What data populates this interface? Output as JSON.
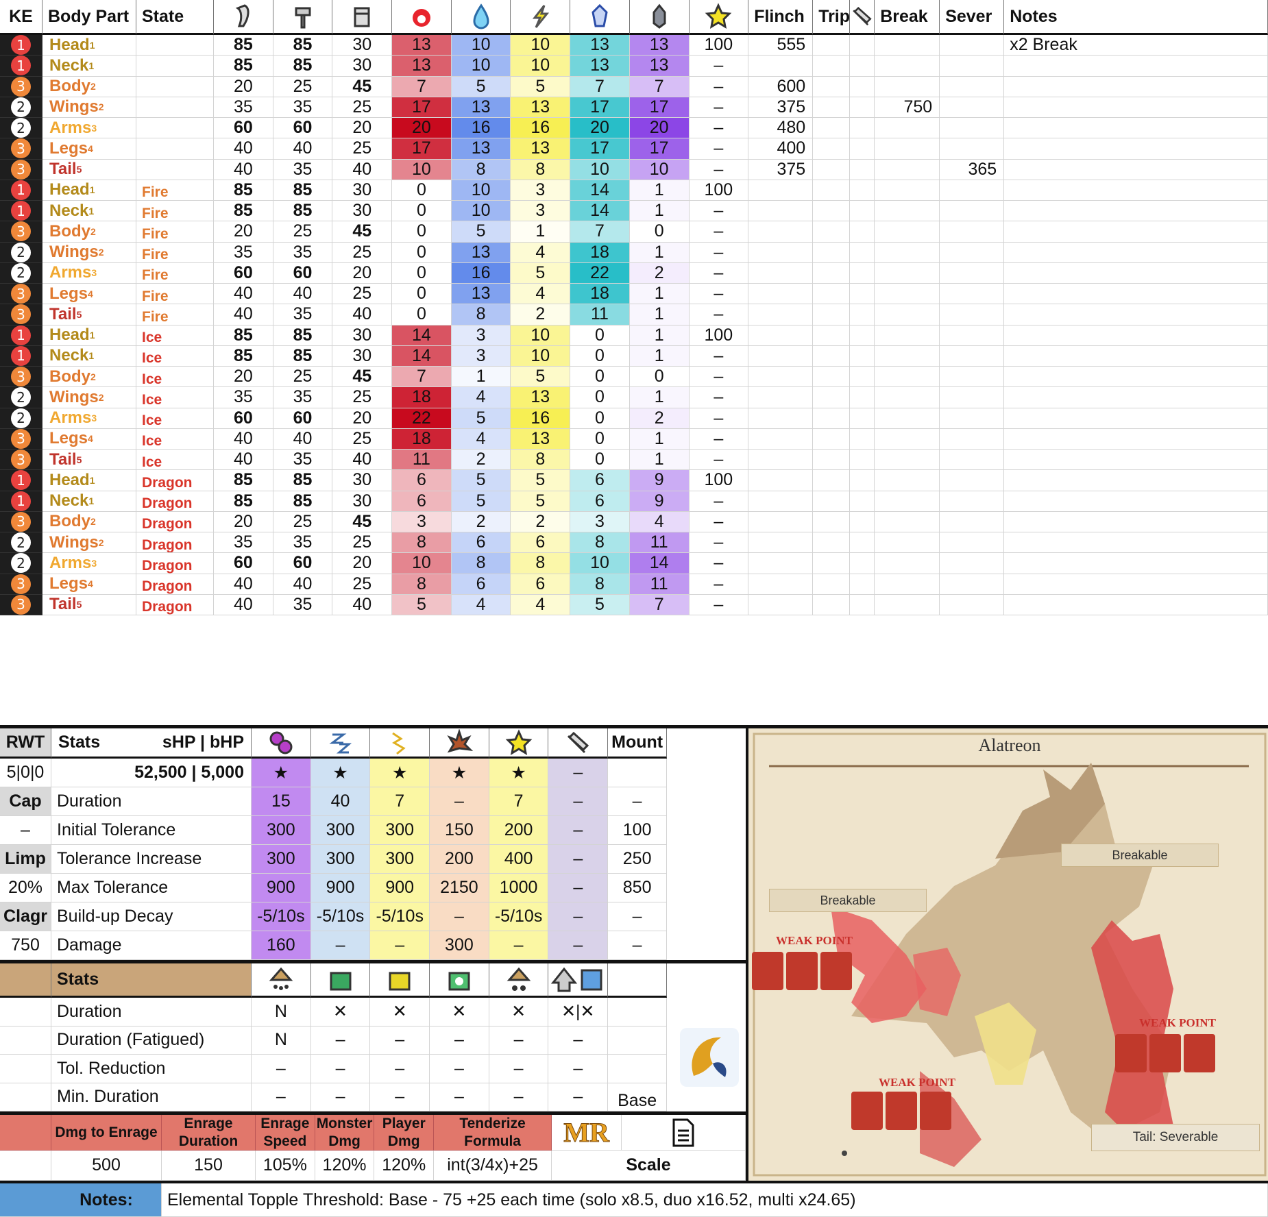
{
  "headers": {
    "ke": "KE",
    "body_part": "Body Part",
    "state": "State",
    "flinch": "Flinch",
    "trip": "Trip",
    "break": "Break",
    "sever": "Sever",
    "notes": "Notes"
  },
  "colors": {
    "badge1": "#e8423f",
    "badge2": "#ffffff",
    "badge3": "#f0883a",
    "fire": "#e8434b",
    "water": "#4a8bf2",
    "thunder": "#f7f56a",
    "ice": "#4fe3e8",
    "dragon": "#9a63f0"
  },
  "rows": [
    {
      "ke": "1",
      "part": "Head",
      "sub": "1",
      "state": "",
      "cut": "85",
      "blunt": "85",
      "shot": "30",
      "fire": "13",
      "water": "10",
      "thunder": "10",
      "ice": "13",
      "dragon": "13",
      "stun": "100",
      "flinch": "555",
      "trip": "",
      "break": "",
      "sever": "",
      "note": "x2 Break"
    },
    {
      "ke": "1",
      "part": "Neck",
      "sub": "1",
      "state": "",
      "cut": "85",
      "blunt": "85",
      "shot": "30",
      "fire": "13",
      "water": "10",
      "thunder": "10",
      "ice": "13",
      "dragon": "13",
      "stun": "–",
      "flinch": "",
      "trip": "",
      "break": "",
      "sever": "",
      "note": ""
    },
    {
      "ke": "3",
      "part": "Body",
      "sub": "2",
      "state": "",
      "cut": "20",
      "blunt": "25",
      "shot": "45",
      "fire": "7",
      "water": "5",
      "thunder": "5",
      "ice": "7",
      "dragon": "7",
      "stun": "–",
      "flinch": "600",
      "trip": "",
      "break": "",
      "sever": "",
      "note": ""
    },
    {
      "ke": "2",
      "part": "Wings",
      "sub": "2",
      "state": "",
      "cut": "35",
      "blunt": "35",
      "shot": "25",
      "fire": "17",
      "water": "13",
      "thunder": "13",
      "ice": "17",
      "dragon": "17",
      "stun": "–",
      "flinch": "375",
      "trip": "",
      "break": "750",
      "sever": "",
      "note": ""
    },
    {
      "ke": "2",
      "part": "Arms",
      "sub": "3",
      "state": "",
      "cut": "60",
      "blunt": "60",
      "shot": "20",
      "fire": "20",
      "water": "16",
      "thunder": "16",
      "ice": "20",
      "dragon": "20",
      "stun": "–",
      "flinch": "480",
      "trip": "",
      "break": "",
      "sever": "",
      "note": ""
    },
    {
      "ke": "3",
      "part": "Legs",
      "sub": "4",
      "state": "",
      "cut": "40",
      "blunt": "40",
      "shot": "25",
      "fire": "17",
      "water": "13",
      "thunder": "13",
      "ice": "17",
      "dragon": "17",
      "stun": "–",
      "flinch": "400",
      "trip": "",
      "break": "",
      "sever": "",
      "note": ""
    },
    {
      "ke": "3",
      "part": "Tail",
      "sub": "5",
      "state": "",
      "cut": "40",
      "blunt": "35",
      "shot": "40",
      "fire": "10",
      "water": "8",
      "thunder": "8",
      "ice": "10",
      "dragon": "10",
      "stun": "–",
      "flinch": "375",
      "trip": "",
      "break": "",
      "sever": "365",
      "note": ""
    },
    {
      "ke": "1",
      "part": "Head",
      "sub": "1",
      "state": "Fire",
      "cut": "85",
      "blunt": "85",
      "shot": "30",
      "fire": "0",
      "water": "10",
      "thunder": "3",
      "ice": "14",
      "dragon": "1",
      "stun": "100",
      "flinch": "",
      "trip": "",
      "break": "",
      "sever": "",
      "note": ""
    },
    {
      "ke": "1",
      "part": "Neck",
      "sub": "1",
      "state": "Fire",
      "cut": "85",
      "blunt": "85",
      "shot": "30",
      "fire": "0",
      "water": "10",
      "thunder": "3",
      "ice": "14",
      "dragon": "1",
      "stun": "–",
      "flinch": "",
      "trip": "",
      "break": "",
      "sever": "",
      "note": ""
    },
    {
      "ke": "3",
      "part": "Body",
      "sub": "2",
      "state": "Fire",
      "cut": "20",
      "blunt": "25",
      "shot": "45",
      "fire": "0",
      "water": "5",
      "thunder": "1",
      "ice": "7",
      "dragon": "0",
      "stun": "–",
      "flinch": "",
      "trip": "",
      "break": "",
      "sever": "",
      "note": ""
    },
    {
      "ke": "2",
      "part": "Wings",
      "sub": "2",
      "state": "Fire",
      "cut": "35",
      "blunt": "35",
      "shot": "25",
      "fire": "0",
      "water": "13",
      "thunder": "4",
      "ice": "18",
      "dragon": "1",
      "stun": "–",
      "flinch": "",
      "trip": "",
      "break": "",
      "sever": "",
      "note": ""
    },
    {
      "ke": "2",
      "part": "Arms",
      "sub": "3",
      "state": "Fire",
      "cut": "60",
      "blunt": "60",
      "shot": "20",
      "fire": "0",
      "water": "16",
      "thunder": "5",
      "ice": "22",
      "dragon": "2",
      "stun": "–",
      "flinch": "",
      "trip": "",
      "break": "",
      "sever": "",
      "note": ""
    },
    {
      "ke": "3",
      "part": "Legs",
      "sub": "4",
      "state": "Fire",
      "cut": "40",
      "blunt": "40",
      "shot": "25",
      "fire": "0",
      "water": "13",
      "thunder": "4",
      "ice": "18",
      "dragon": "1",
      "stun": "–",
      "flinch": "",
      "trip": "",
      "break": "",
      "sever": "",
      "note": ""
    },
    {
      "ke": "3",
      "part": "Tail",
      "sub": "5",
      "state": "Fire",
      "cut": "40",
      "blunt": "35",
      "shot": "40",
      "fire": "0",
      "water": "8",
      "thunder": "2",
      "ice": "11",
      "dragon": "1",
      "stun": "–",
      "flinch": "",
      "trip": "",
      "break": "",
      "sever": "",
      "note": ""
    },
    {
      "ke": "1",
      "part": "Head",
      "sub": "1",
      "state": "Ice",
      "cut": "85",
      "blunt": "85",
      "shot": "30",
      "fire": "14",
      "water": "3",
      "thunder": "10",
      "ice": "0",
      "dragon": "1",
      "stun": "100",
      "flinch": "",
      "trip": "",
      "break": "",
      "sever": "",
      "note": ""
    },
    {
      "ke": "1",
      "part": "Neck",
      "sub": "1",
      "state": "Ice",
      "cut": "85",
      "blunt": "85",
      "shot": "30",
      "fire": "14",
      "water": "3",
      "thunder": "10",
      "ice": "0",
      "dragon": "1",
      "stun": "–",
      "flinch": "",
      "trip": "",
      "break": "",
      "sever": "",
      "note": ""
    },
    {
      "ke": "3",
      "part": "Body",
      "sub": "2",
      "state": "Ice",
      "cut": "20",
      "blunt": "25",
      "shot": "45",
      "fire": "7",
      "water": "1",
      "thunder": "5",
      "ice": "0",
      "dragon": "0",
      "stun": "–",
      "flinch": "",
      "trip": "",
      "break": "",
      "sever": "",
      "note": ""
    },
    {
      "ke": "2",
      "part": "Wings",
      "sub": "2",
      "state": "Ice",
      "cut": "35",
      "blunt": "35",
      "shot": "25",
      "fire": "18",
      "water": "4",
      "thunder": "13",
      "ice": "0",
      "dragon": "1",
      "stun": "–",
      "flinch": "",
      "trip": "",
      "break": "",
      "sever": "",
      "note": ""
    },
    {
      "ke": "2",
      "part": "Arms",
      "sub": "3",
      "state": "Ice",
      "cut": "60",
      "blunt": "60",
      "shot": "20",
      "fire": "22",
      "water": "5",
      "thunder": "16",
      "ice": "0",
      "dragon": "2",
      "stun": "–",
      "flinch": "",
      "trip": "",
      "break": "",
      "sever": "",
      "note": ""
    },
    {
      "ke": "3",
      "part": "Legs",
      "sub": "4",
      "state": "Ice",
      "cut": "40",
      "blunt": "40",
      "shot": "25",
      "fire": "18",
      "water": "4",
      "thunder": "13",
      "ice": "0",
      "dragon": "1",
      "stun": "–",
      "flinch": "",
      "trip": "",
      "break": "",
      "sever": "",
      "note": ""
    },
    {
      "ke": "3",
      "part": "Tail",
      "sub": "5",
      "state": "Ice",
      "cut": "40",
      "blunt": "35",
      "shot": "40",
      "fire": "11",
      "water": "2",
      "thunder": "8",
      "ice": "0",
      "dragon": "1",
      "stun": "–",
      "flinch": "",
      "trip": "",
      "break": "",
      "sever": "",
      "note": ""
    },
    {
      "ke": "1",
      "part": "Head",
      "sub": "1",
      "state": "Dragon",
      "cut": "85",
      "blunt": "85",
      "shot": "30",
      "fire": "6",
      "water": "5",
      "thunder": "5",
      "ice": "6",
      "dragon": "9",
      "stun": "100",
      "flinch": "",
      "trip": "",
      "break": "",
      "sever": "",
      "note": ""
    },
    {
      "ke": "1",
      "part": "Neck",
      "sub": "1",
      "state": "Dragon",
      "cut": "85",
      "blunt": "85",
      "shot": "30",
      "fire": "6",
      "water": "5",
      "thunder": "5",
      "ice": "6",
      "dragon": "9",
      "stun": "–",
      "flinch": "",
      "trip": "",
      "break": "",
      "sever": "",
      "note": ""
    },
    {
      "ke": "3",
      "part": "Body",
      "sub": "2",
      "state": "Dragon",
      "cut": "20",
      "blunt": "25",
      "shot": "45",
      "fire": "3",
      "water": "2",
      "thunder": "2",
      "ice": "3",
      "dragon": "4",
      "stun": "–",
      "flinch": "",
      "trip": "",
      "break": "",
      "sever": "",
      "note": ""
    },
    {
      "ke": "2",
      "part": "Wings",
      "sub": "2",
      "state": "Dragon",
      "cut": "35",
      "blunt": "35",
      "shot": "25",
      "fire": "8",
      "water": "6",
      "thunder": "6",
      "ice": "8",
      "dragon": "11",
      "stun": "–",
      "flinch": "",
      "trip": "",
      "break": "",
      "sever": "",
      "note": ""
    },
    {
      "ke": "2",
      "part": "Arms",
      "sub": "3",
      "state": "Dragon",
      "cut": "60",
      "blunt": "60",
      "shot": "20",
      "fire": "10",
      "water": "8",
      "thunder": "8",
      "ice": "10",
      "dragon": "14",
      "stun": "–",
      "flinch": "",
      "trip": "",
      "break": "",
      "sever": "",
      "note": ""
    },
    {
      "ke": "3",
      "part": "Legs",
      "sub": "4",
      "state": "Dragon",
      "cut": "40",
      "blunt": "40",
      "shot": "25",
      "fire": "8",
      "water": "6",
      "thunder": "6",
      "ice": "8",
      "dragon": "11",
      "stun": "–",
      "flinch": "",
      "trip": "",
      "break": "",
      "sever": "",
      "note": ""
    },
    {
      "ke": "3",
      "part": "Tail",
      "sub": "5",
      "state": "Dragon",
      "cut": "40",
      "blunt": "35",
      "shot": "40",
      "fire": "5",
      "water": "4",
      "thunder": "4",
      "ice": "5",
      "dragon": "7",
      "stun": "–",
      "flinch": "",
      "trip": "",
      "break": "",
      "sever": "",
      "note": ""
    }
  ],
  "status": {
    "header": {
      "rwt": "RWT",
      "stats": "Stats",
      "hp": "sHP  |  bHP",
      "mount": "Mount"
    },
    "hp_row": {
      "rwt": "5|0|0",
      "hp": "52,500 | 5,000",
      "vals": [
        "★",
        "★",
        "★",
        "★",
        "★",
        "–",
        ""
      ]
    },
    "rows": [
      {
        "side": "Cap",
        "label": "Duration",
        "vals": [
          "15",
          "40",
          "7",
          "–",
          "7",
          "–",
          "–"
        ]
      },
      {
        "side": "–",
        "label": "Initial Tolerance",
        "vals": [
          "300",
          "300",
          "300",
          "150",
          "200",
          "–",
          "100"
        ]
      },
      {
        "side": "Limp",
        "label": "Tolerance Increase",
        "vals": [
          "300",
          "300",
          "300",
          "200",
          "400",
          "–",
          "250"
        ]
      },
      {
        "side": "20%",
        "label": "Max Tolerance",
        "vals": [
          "900",
          "900",
          "900",
          "2150",
          "1000",
          "–",
          "850"
        ]
      },
      {
        "side": "Clagr",
        "label": "Build-up Decay",
        "vals": [
          "-5/10s",
          "-5/10s",
          "-5/10s",
          "–",
          "-5/10s",
          "–",
          "–"
        ]
      },
      {
        "side": "750",
        "label": "Damage",
        "vals": [
          "160",
          "–",
          "–",
          "300",
          "–",
          "–",
          "–"
        ]
      }
    ],
    "col_colors": [
      "#c18af0",
      "#cfe1f3",
      "#fbf7a3",
      "#f9dcc4",
      "#fbf7a3",
      "#d9d2e9",
      "#ffffff"
    ]
  },
  "traps": {
    "header": "Stats",
    "rows": [
      {
        "label": "Duration",
        "vals": [
          "N",
          "✕",
          "✕",
          "✕",
          "✕",
          "✕|✕"
        ]
      },
      {
        "label": "Duration (Fatigued)",
        "vals": [
          "N",
          "–",
          "–",
          "–",
          "–",
          "–"
        ]
      },
      {
        "label": "Tol. Reduction",
        "vals": [
          "–",
          "–",
          "–",
          "–",
          "–",
          "–"
        ]
      },
      {
        "label": "Min. Duration",
        "vals": [
          "–",
          "–",
          "–",
          "–",
          "–",
          "–"
        ]
      }
    ],
    "base": "Base"
  },
  "enrage": {
    "headers": [
      "Dmg to Enrage",
      "Enrage Duration",
      "Enrage Speed",
      "Monster Dmg",
      "Player Dmg",
      "Tenderize Formula"
    ],
    "values": [
      "500",
      "150",
      "105%",
      "120%",
      "120%",
      "int(3/4x)+25"
    ],
    "mr": "MR",
    "scale": "Scale"
  },
  "notes": {
    "label": "Notes:",
    "text": "Elemental Topple Threshold: Base - 75 +25 each time (solo x8.5, duo x16.52, multi x24.65)"
  },
  "map": {
    "title": "Alatreon",
    "breakable1": "Breakable",
    "breakable2": "Breakable",
    "weak1": "WEAK POINT",
    "weak2": "WEAK POINT",
    "weak3": "WEAK POINT",
    "tail": "Tail: Severable"
  }
}
